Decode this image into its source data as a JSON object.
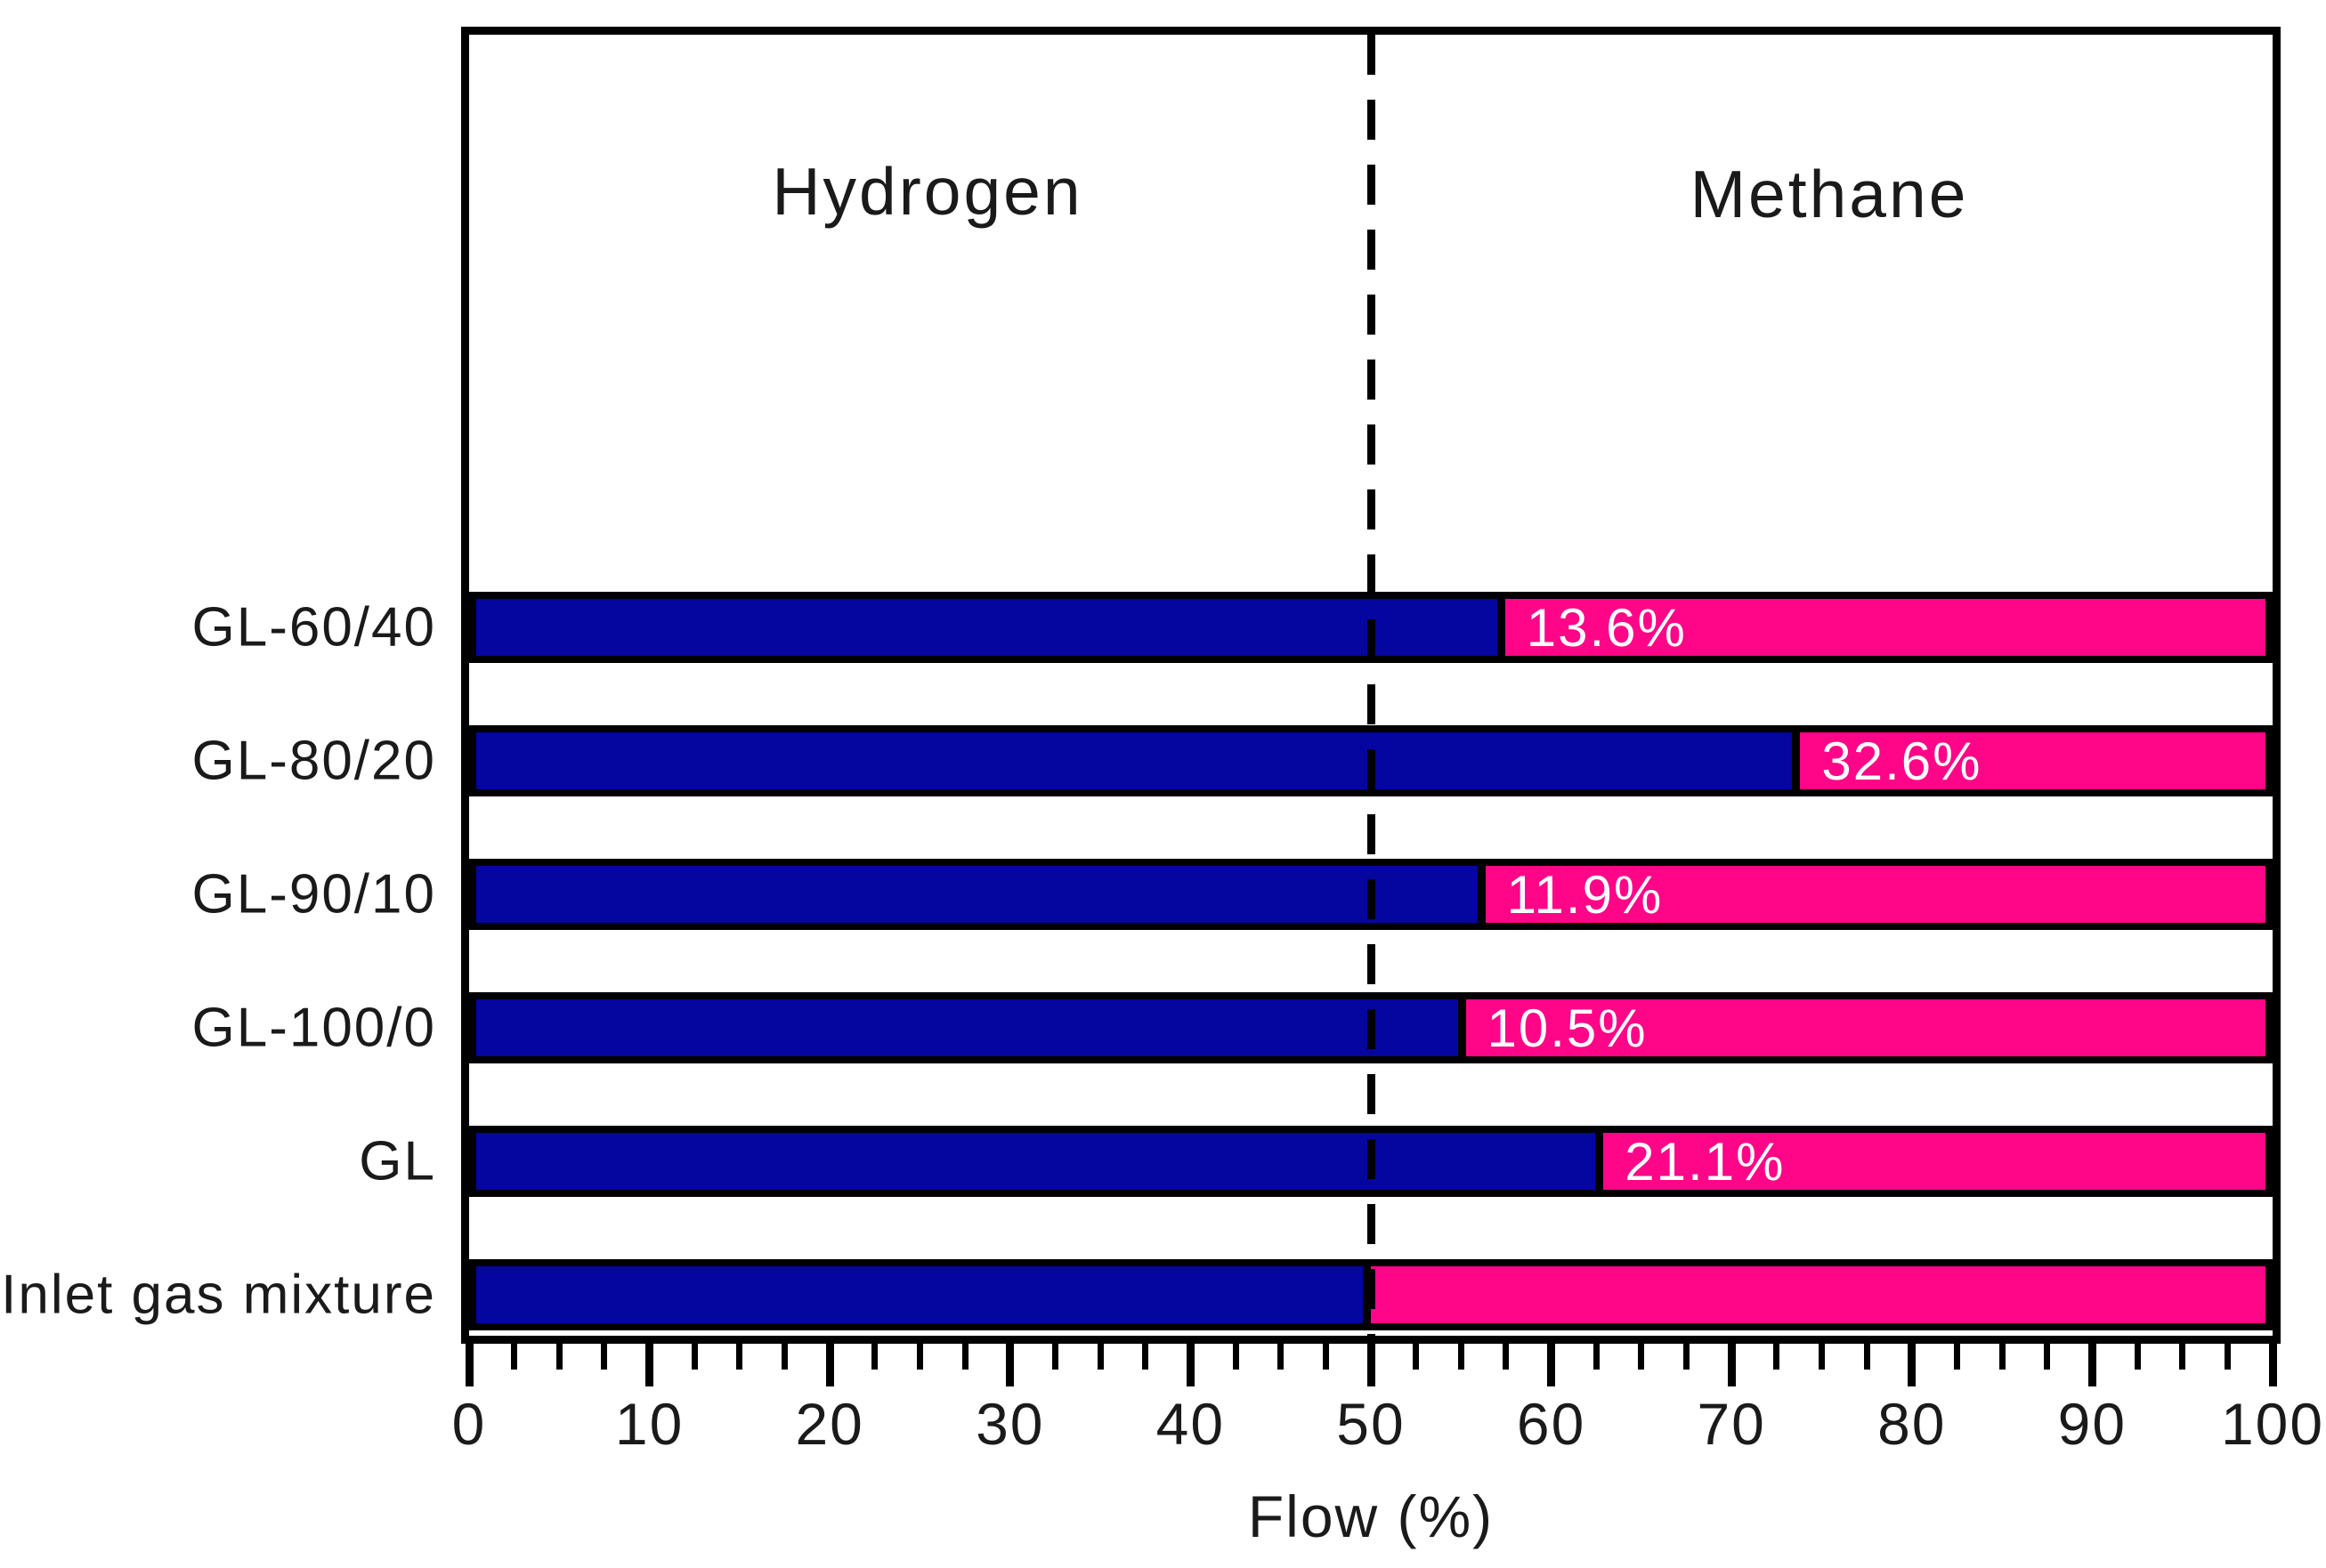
{
  "chart_data": {
    "type": "bar",
    "orientation": "horizontal",
    "stacked": true,
    "xlabel": "Flow (%)",
    "xlim": [
      0,
      100
    ],
    "x_major_ticks": [
      0,
      10,
      20,
      30,
      40,
      50,
      60,
      70,
      80,
      90,
      100
    ],
    "x_minor_tick_step": 2.5,
    "grid": false,
    "reference_line_x": 50,
    "region_labels": [
      {
        "text": "Hydrogen",
        "x_pct": 25
      },
      {
        "text": "Methane",
        "x_pct": 75
      }
    ],
    "categories": [
      "GL-60/40",
      "GL-80/20",
      "GL-90/10",
      "GL-100/0",
      "GL",
      "Inlet gas mixture"
    ],
    "series": [
      {
        "name": "Hydrogen",
        "color": "#0505A0",
        "values": [
          57.5,
          74.0,
          56.4,
          55.3,
          63.0,
          50.0
        ]
      },
      {
        "name": "Methane",
        "color": "#FF0588",
        "values": [
          42.5,
          26.0,
          43.6,
          44.7,
          37.0,
          50.0
        ]
      }
    ],
    "bar_labels": [
      "13.6%",
      "32.6%",
      "11.9%",
      "10.5%",
      "21.1%",
      ""
    ],
    "bar_label_color": "#ffffff",
    "axis_color": "#000000",
    "text_color": "#1a1a1a"
  }
}
